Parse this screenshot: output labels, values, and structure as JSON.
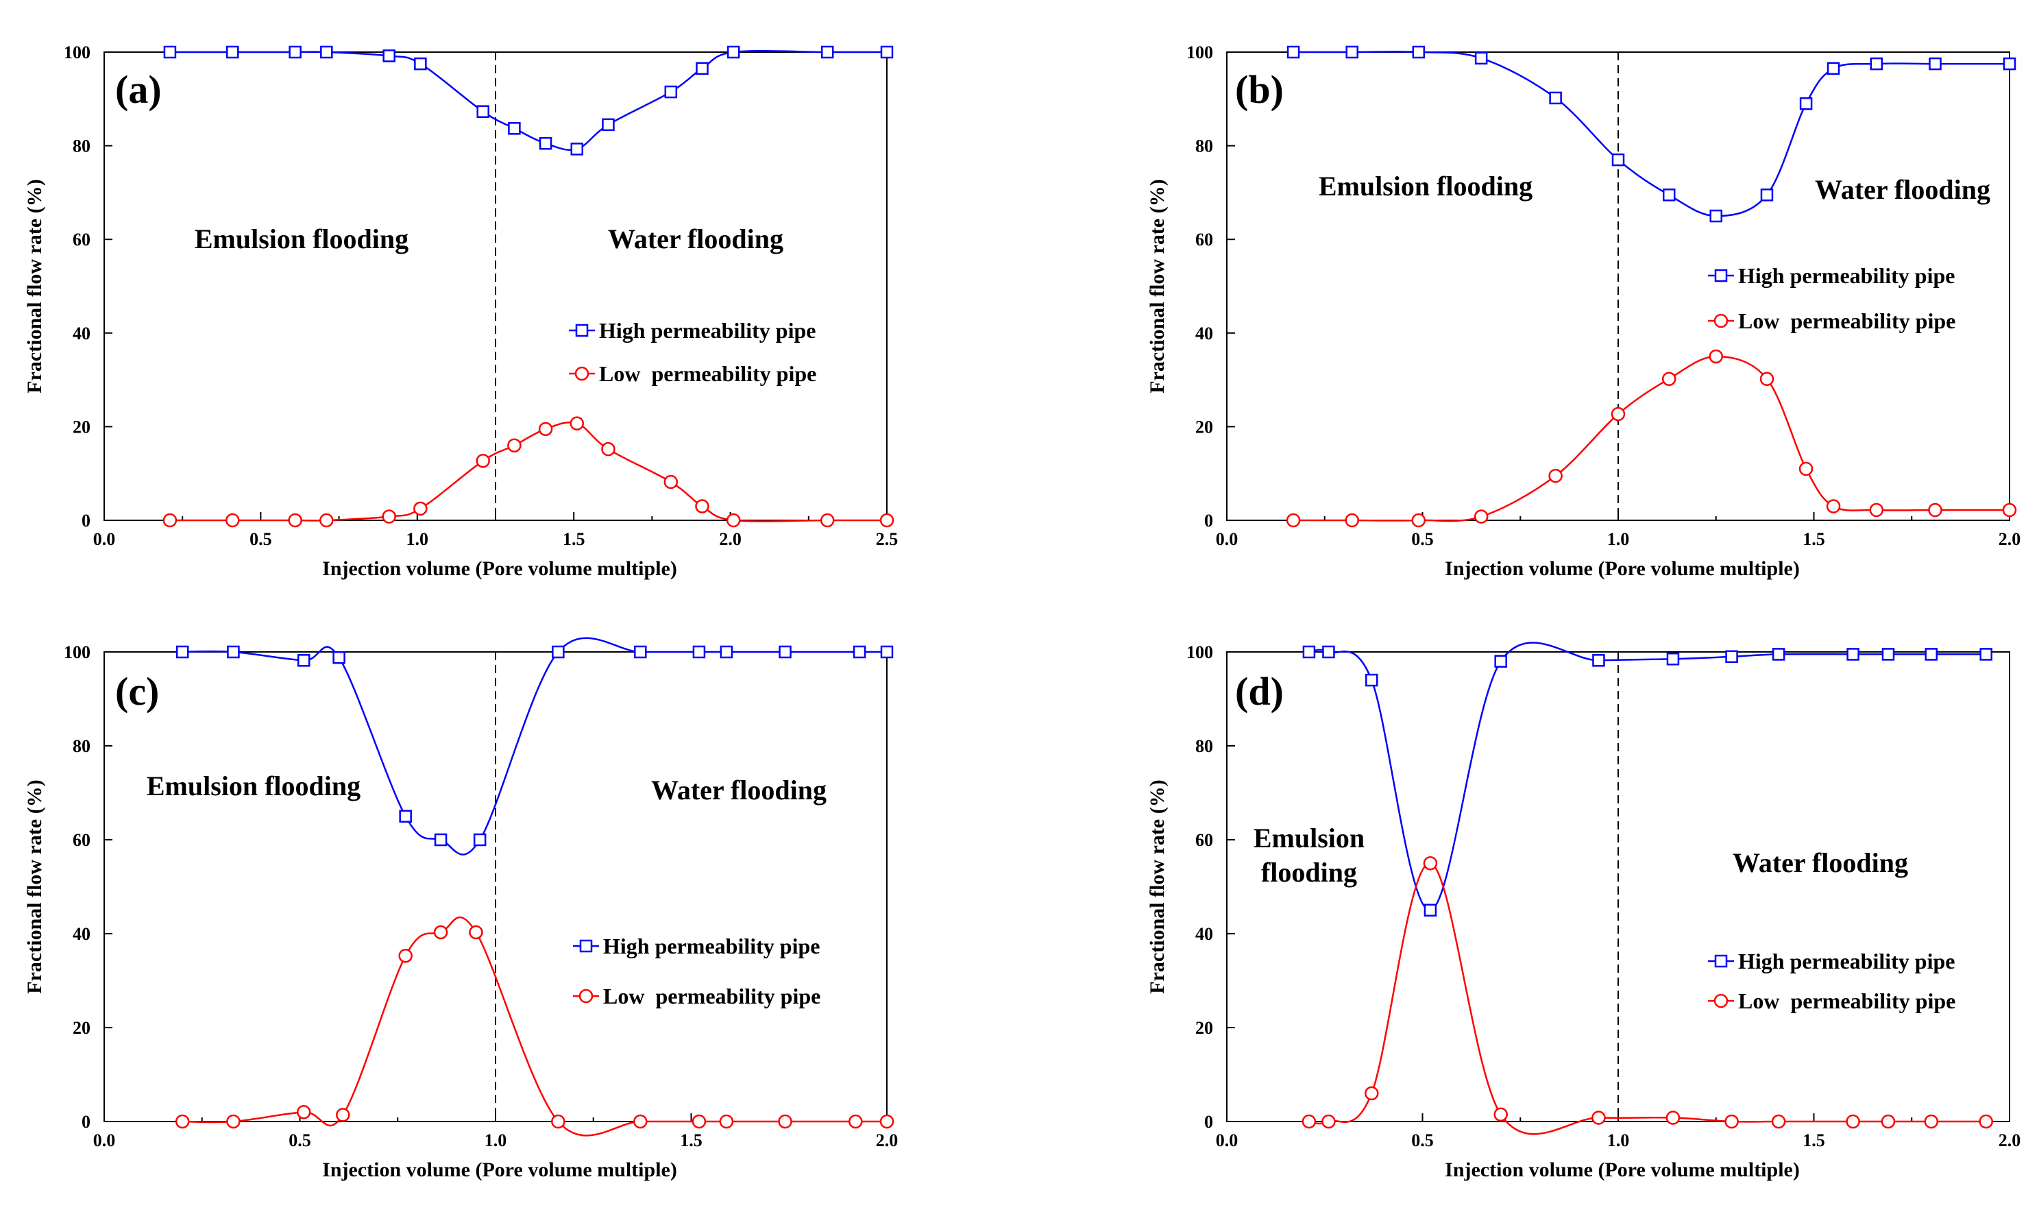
{
  "figure": {
    "legend_high": "High permeability pipe",
    "legend_low": "Low  permeability pipe"
  },
  "colors": {
    "high": "#0000ff",
    "low": "#ff0000",
    "axis": "#000000"
  },
  "chart_data": [
    {
      "type": "line",
      "panel": "(a)",
      "xlabel": "Injection volume (Pore volume multiple)",
      "ylabel": "Fractional flow rate (%)",
      "xlim": [
        0,
        2.5
      ],
      "ylim": [
        0,
        100
      ],
      "xticks": [
        "0.0",
        "0.5",
        "1.0",
        "1.5",
        "2.0",
        "2.5"
      ],
      "yticks": [
        "0",
        "20",
        "40",
        "60",
        "80",
        "100"
      ],
      "divider_x": 1.25,
      "regions": [
        [
          "Emulsion flooding"
        ],
        [
          "Water flooding"
        ]
      ],
      "series": [
        {
          "name": "High permeability pipe",
          "marker": "square",
          "x": [
            0.21,
            0.41,
            0.61,
            0.71,
            0.91,
            1.01,
            1.21,
            1.31,
            1.41,
            1.51,
            1.61,
            1.81,
            1.91,
            2.01,
            2.31,
            2.5
          ],
          "y": [
            100,
            100,
            100,
            100,
            99.2,
            97.5,
            87.3,
            83.7,
            80.5,
            79.3,
            84.5,
            91.5,
            96.5,
            100,
            100,
            100
          ]
        },
        {
          "name": "Low  permeability pipe",
          "marker": "circle",
          "x": [
            0.21,
            0.41,
            0.61,
            0.71,
            0.91,
            1.01,
            1.21,
            1.31,
            1.41,
            1.51,
            1.61,
            1.81,
            1.91,
            2.01,
            2.31,
            2.5
          ],
          "y": [
            0,
            0,
            0,
            0,
            0.8,
            2.5,
            12.7,
            16,
            19.5,
            20.7,
            15.2,
            8.2,
            3,
            0,
            0,
            0
          ]
        }
      ]
    },
    {
      "type": "line",
      "panel": "(b)",
      "xlabel": "Injection volume (Pore volume multiple)",
      "ylabel": "Fractional flow rate (%)",
      "xlim": [
        0,
        2.0
      ],
      "ylim": [
        0,
        100
      ],
      "xticks": [
        "0.0",
        "0.5",
        "1.0",
        "1.5",
        "2.0"
      ],
      "yticks": [
        "0",
        "20",
        "40",
        "60",
        "80",
        "100"
      ],
      "divider_x": 1.0,
      "regions": [
        [
          "Emulsion flooding"
        ],
        [
          "Water flooding"
        ]
      ],
      "series": [
        {
          "name": "High permeability pipe",
          "marker": "square",
          "x": [
            0.17,
            0.32,
            0.49,
            0.65,
            0.84,
            1.0,
            1.13,
            1.25,
            1.38,
            1.48,
            1.55,
            1.66,
            1.81,
            2.0
          ],
          "y": [
            100,
            100,
            100,
            98.7,
            90.2,
            77,
            69.5,
            65,
            69.5,
            89,
            96.5,
            97.5,
            97.5,
            97.5
          ]
        },
        {
          "name": "Low  permeability pipe",
          "marker": "circle",
          "x": [
            0.17,
            0.32,
            0.49,
            0.65,
            0.84,
            1.0,
            1.13,
            1.25,
            1.38,
            1.48,
            1.55,
            1.66,
            1.81,
            2.0
          ],
          "y": [
            0,
            0,
            0,
            0.8,
            9.5,
            22.7,
            30.2,
            35,
            30.2,
            11,
            3,
            2.2,
            2.2,
            2.2
          ]
        }
      ]
    },
    {
      "type": "line",
      "panel": "(c)",
      "xlabel": "Injection volume (Pore volume multiple)",
      "ylabel": "Fractional flow rate (%)",
      "xlim": [
        0,
        2.0
      ],
      "ylim": [
        0,
        100
      ],
      "xticks": [
        "0.0",
        "0.5",
        "1.0",
        "1.5",
        "2.0"
      ],
      "yticks": [
        "0",
        "20",
        "40",
        "60",
        "80",
        "100"
      ],
      "divider_x": 1.0,
      "regions": [
        [
          "Emulsion flooding"
        ],
        [
          "Water flooding"
        ]
      ],
      "series": [
        {
          "name": "High permeability pipe",
          "marker": "square",
          "x": [
            0.2,
            0.33,
            0.51,
            0.6,
            0.77,
            0.86,
            0.96,
            1.16,
            1.37,
            1.52,
            1.59,
            1.74,
            1.93,
            2.0
          ],
          "y": [
            100,
            100,
            98.2,
            98.8,
            65,
            60,
            60,
            100,
            100,
            100,
            100,
            100,
            100,
            100
          ]
        },
        {
          "name": "Low  permeability pipe",
          "marker": "circle",
          "x": [
            0.2,
            0.33,
            0.51,
            0.61,
            0.77,
            0.86,
            0.95,
            1.16,
            1.37,
            1.52,
            1.59,
            1.74,
            1.92,
            2.0
          ],
          "y": [
            0,
            0,
            2,
            1.4,
            35.3,
            40.3,
            40.3,
            0,
            0,
            0,
            0,
            0,
            0,
            0
          ]
        }
      ]
    },
    {
      "type": "line",
      "panel": "(d)",
      "xlabel": "Injection volume (Pore volume multiple)",
      "ylabel": "Fractional flow rate (%)",
      "xlim": [
        0,
        2.0
      ],
      "ylim": [
        0,
        100
      ],
      "xticks": [
        "0.0",
        "0.5",
        "1.0",
        "1.5",
        "2.0"
      ],
      "yticks": [
        "0",
        "20",
        "40",
        "60",
        "80",
        "100"
      ],
      "divider_x": 1.0,
      "regions": [
        [
          "Emulsion",
          "flooding"
        ],
        [
          "Water flooding"
        ]
      ],
      "series": [
        {
          "name": "High permeability pipe",
          "marker": "square",
          "x": [
            0.21,
            0.26,
            0.37,
            0.52,
            0.7,
            0.95,
            1.14,
            1.29,
            1.41,
            1.6,
            1.69,
            1.8,
            1.94
          ],
          "y": [
            100,
            100,
            94,
            45,
            98,
            98.2,
            98.5,
            99,
            99.5,
            99.5,
            99.5,
            99.5,
            99.5
          ]
        },
        {
          "name": "Low  permeability pipe",
          "marker": "circle",
          "x": [
            0.21,
            0.26,
            0.37,
            0.52,
            0.7,
            0.95,
            1.14,
            1.29,
            1.41,
            1.6,
            1.69,
            1.8,
            1.94
          ],
          "y": [
            0,
            0,
            6,
            55,
            1.5,
            0.8,
            0.8,
            0,
            0,
            0,
            0,
            0,
            0
          ]
        }
      ]
    }
  ]
}
